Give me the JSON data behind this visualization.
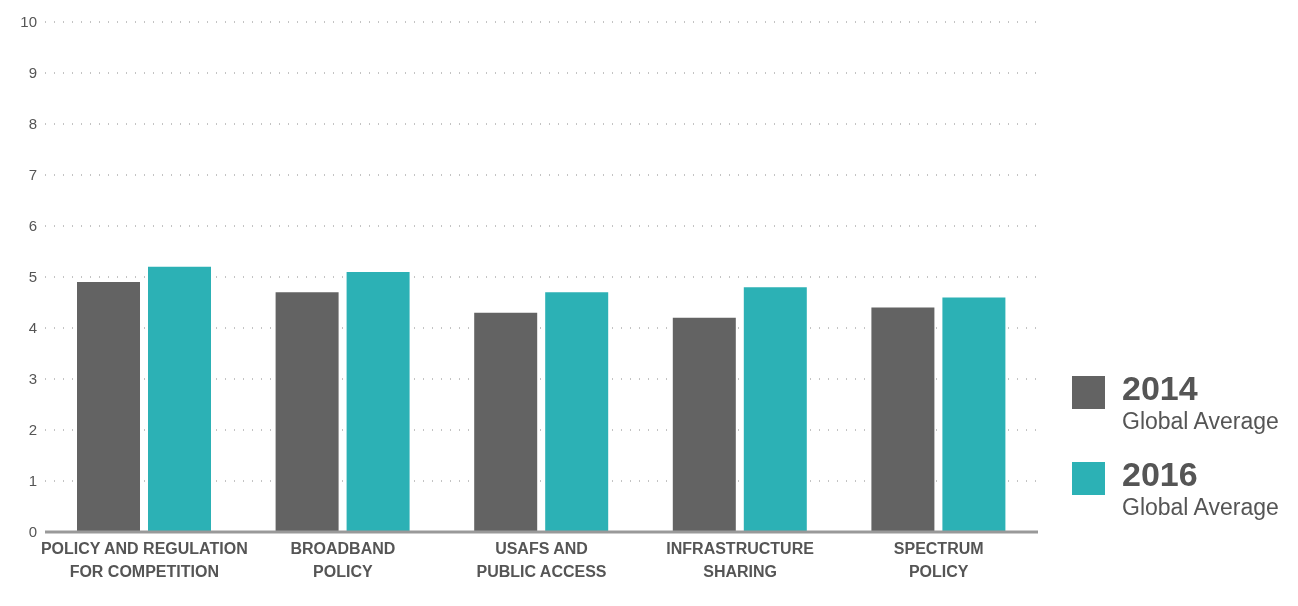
{
  "chart_data": {
    "type": "bar",
    "categories": [
      "POLICY AND REGULATION FOR COMPETITION",
      "BROADBAND POLICY",
      "USAFS AND PUBLIC ACCESS",
      "INFRASTRUCTURE SHARING",
      "SPECTRUM POLICY"
    ],
    "series": [
      {
        "name": "2014 Global Average",
        "color": "#636363",
        "values": [
          4.9,
          4.7,
          4.3,
          4.2,
          4.4
        ]
      },
      {
        "name": "2016 Global Average",
        "color": "#2cb1b5",
        "values": [
          5.2,
          5.1,
          4.7,
          4.8,
          4.6
        ]
      }
    ],
    "ylim": [
      0,
      10
    ],
    "yticks": [
      0,
      1,
      2,
      3,
      4,
      5,
      6,
      7,
      8,
      9,
      10
    ],
    "grid": "y",
    "legend": "right"
  }
}
